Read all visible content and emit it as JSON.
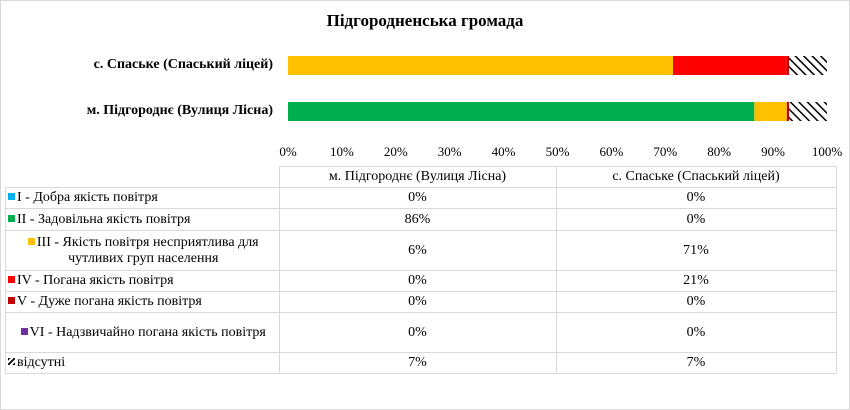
{
  "chart_data": {
    "type": "bar",
    "orientation": "horizontal",
    "stacked": "percent",
    "title": "Підгородненська громада",
    "categories": [
      "м. Підгороднє (Вулиця Лісна)",
      "с. Спаське (Спаський  ліцей)"
    ],
    "category_labels": [
      "с. Спаське (Спаський  ліцей)",
      "м. Підгороднє (Вулиця Лісна)"
    ],
    "table_headers": [
      "м. Підгороднє (Вулиця Лісна)",
      "с. Спаське (Спаський ліцей)"
    ],
    "x_ticks": [
      "0%",
      "10%",
      "20%",
      "30%",
      "40%",
      "50%",
      "60%",
      "70%",
      "80%",
      "90%",
      "100%"
    ],
    "xlim": [
      0,
      100
    ],
    "grid": false,
    "legend_placement": "data-table-below",
    "series": [
      {
        "name": "I - Добра якість  повітря",
        "color": "#00b0f0",
        "pattern": "solid",
        "values": [
          0,
          0
        ],
        "labels": [
          "0%",
          "0%"
        ]
      },
      {
        "name": "II - Задовільна якість  повітря",
        "color": "#00b050",
        "pattern": "solid",
        "values": [
          86,
          0
        ],
        "labels": [
          "86%",
          "0%"
        ]
      },
      {
        "name": "III - Якість  повітря несприятлива для чутливих груп населення",
        "color": "#ffc000",
        "pattern": "solid",
        "values": [
          6,
          71
        ],
        "labels": [
          "6%",
          "71%"
        ]
      },
      {
        "name": "IV - Погана якість  повітря",
        "color": "#ff0000",
        "pattern": "solid",
        "values": [
          0,
          21
        ],
        "labels": [
          "0%",
          "21%"
        ]
      },
      {
        "name": "V - Дуже погана якість  повітря",
        "color": "#c00000",
        "pattern": "solid",
        "values": [
          0.4,
          0.4
        ],
        "labels": [
          "0%",
          "0%"
        ]
      },
      {
        "name": "VI - Надзвичайно погана якість повітря",
        "color": "#7030a0",
        "pattern": "solid",
        "values": [
          0,
          0
        ],
        "labels": [
          "0%",
          "0%"
        ]
      },
      {
        "name": "відсутні",
        "color": "#000000",
        "pattern": "hatch",
        "values": [
          7,
          7
        ],
        "labels": [
          "7%",
          "7%"
        ]
      }
    ]
  }
}
